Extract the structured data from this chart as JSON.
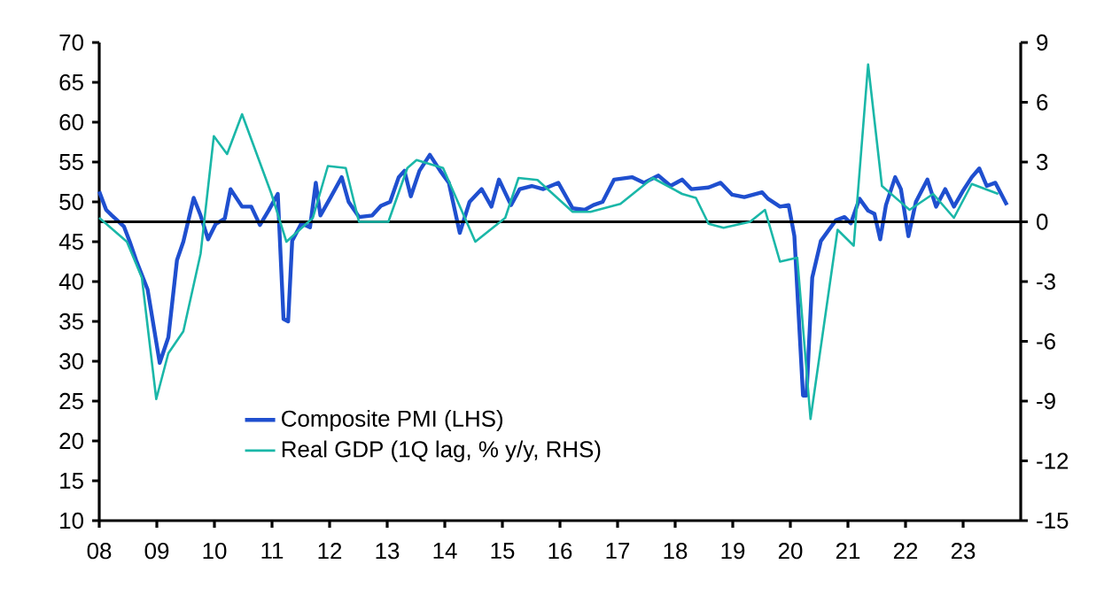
{
  "chart_data": {
    "type": "line",
    "x": [
      2008.0,
      2008.12,
      2008.22,
      2008.43,
      2008.53,
      2008.64,
      2008.84,
      2009.05,
      2009.2,
      2009.35,
      2009.46,
      2009.64,
      2009.76,
      2009.89,
      2010.02,
      2010.18,
      2010.28,
      2010.48,
      2010.64,
      2010.79,
      2010.94,
      2011.1,
      2011.2,
      2011.28,
      2011.35,
      2011.51,
      2011.66,
      2011.76,
      2011.84,
      2012.02,
      2012.21,
      2012.33,
      2012.51,
      2012.74,
      2012.89,
      2013.05,
      2013.2,
      2013.3,
      2013.41,
      2013.56,
      2013.74,
      2013.92,
      2014.07,
      2014.26,
      2014.43,
      2014.64,
      2014.81,
      2014.94,
      2015.15,
      2015.3,
      2015.51,
      2015.71,
      2015.97,
      2016.22,
      2016.43,
      2016.58,
      2016.74,
      2016.94,
      2017.25,
      2017.46,
      2017.71,
      2017.92,
      2018.12,
      2018.28,
      2018.58,
      2018.79,
      2018.99,
      2019.2,
      2019.51,
      2019.61,
      2019.82,
      2019.97,
      2020.07,
      2020.22,
      2020.28,
      2020.38,
      2020.53,
      2020.79,
      2020.94,
      2021.05,
      2021.2,
      2021.35,
      2021.46,
      2021.56,
      2021.66,
      2021.82,
      2021.92,
      2022.05,
      2022.18,
      2022.38,
      2022.53,
      2022.69,
      2022.84,
      2022.99,
      2023.15,
      2023.28,
      2023.41,
      2023.56,
      2023.76
    ],
    "series": [
      {
        "name": "Composite PMI (LHS)",
        "color": "#1f4fcf",
        "values": [
          51.3,
          49.0,
          48.3,
          46.9,
          45.0,
          42.7,
          39.0,
          29.8,
          33.0,
          42.7,
          45.0,
          50.5,
          48.3,
          45.3,
          47.2,
          47.9,
          51.6,
          49.4,
          49.4,
          47.1,
          48.9,
          51.0,
          35.3,
          35.0,
          45.1,
          47.3,
          46.8,
          52.4,
          48.3,
          50.6,
          53.1,
          50.0,
          48.1,
          48.3,
          49.5,
          50.0,
          53.1,
          53.9,
          50.7,
          53.9,
          55.9,
          53.9,
          52.4,
          46.1,
          50.0,
          51.6,
          49.4,
          52.8,
          49.6,
          51.6,
          52.0,
          51.6,
          52.4,
          49.2,
          49.0,
          49.6,
          50.0,
          52.8,
          53.1,
          52.4,
          53.3,
          52.0,
          52.8,
          51.6,
          51.8,
          52.4,
          50.9,
          50.6,
          51.2,
          50.4,
          49.4,
          49.6,
          45.7,
          25.7,
          25.7,
          40.5,
          45.1,
          47.7,
          48.1,
          47.3,
          50.4,
          48.9,
          48.5,
          45.3,
          49.6,
          53.1,
          51.6,
          45.7,
          50.0,
          52.8,
          49.4,
          51.6,
          49.4,
          51.3,
          53.1,
          54.2,
          52.0,
          52.4,
          49.6
        ]
      },
      {
        "name": "Real GDP (1Q lag, % y/y, RHS)",
        "color": "#1ab7a8",
        "axis": "y2",
        "x": [
          2008.0,
          2008.48,
          2008.74,
          2008.99,
          2009.2,
          2009.46,
          2009.76,
          2009.99,
          2010.22,
          2010.48,
          2010.99,
          2011.25,
          2011.71,
          2011.97,
          2012.28,
          2012.51,
          2013.02,
          2013.35,
          2013.51,
          2013.97,
          2014.53,
          2015.05,
          2015.28,
          2015.61,
          2016.22,
          2016.53,
          2017.05,
          2017.61,
          2018.12,
          2018.36,
          2018.58,
          2018.84,
          2019.3,
          2019.56,
          2019.82,
          2020.12,
          2020.35,
          2020.82,
          2021.1,
          2021.35,
          2021.59,
          2022.07,
          2022.48,
          2022.84,
          2023.15,
          2023.61
        ],
        "values": [
          0.2,
          -1.0,
          -2.8,
          -8.9,
          -6.6,
          -5.5,
          -1.6,
          4.3,
          3.4,
          5.4,
          1.4,
          -1.0,
          0.2,
          2.8,
          2.7,
          0.0,
          0.0,
          2.7,
          3.1,
          2.7,
          -1.0,
          0.2,
          2.2,
          2.1,
          0.5,
          0.5,
          0.9,
          2.2,
          1.4,
          1.2,
          -0.1,
          -0.3,
          0.0,
          0.6,
          -2.0,
          -1.8,
          -9.9,
          -0.4,
          -1.2,
          7.9,
          1.8,
          0.6,
          1.4,
          0.2,
          1.9,
          1.4
        ]
      }
    ],
    "xlim": [
      2008,
      2024
    ],
    "xticks": [
      {
        "value": 2008,
        "label": "08"
      },
      {
        "value": 2009,
        "label": "09"
      },
      {
        "value": 2010,
        "label": "10"
      },
      {
        "value": 2011,
        "label": "11"
      },
      {
        "value": 2012,
        "label": "12"
      },
      {
        "value": 2013,
        "label": "13"
      },
      {
        "value": 2014,
        "label": "14"
      },
      {
        "value": 2015,
        "label": "15"
      },
      {
        "value": 2016,
        "label": "16"
      },
      {
        "value": 2017,
        "label": "17"
      },
      {
        "value": 2018,
        "label": "18"
      },
      {
        "value": 2019,
        "label": "19"
      },
      {
        "value": 2020,
        "label": "20"
      },
      {
        "value": 2021,
        "label": "21"
      },
      {
        "value": 2022,
        "label": "22"
      },
      {
        "value": 2023,
        "label": "23"
      }
    ],
    "ylim": [
      10,
      70
    ],
    "yticks": [
      10,
      15,
      20,
      25,
      30,
      35,
      40,
      45,
      50,
      55,
      60,
      65,
      70
    ],
    "y2lim": [
      -15,
      9
    ],
    "y2ticks": [
      -15,
      -12,
      -9,
      -6,
      -3,
      0,
      3,
      6,
      9
    ],
    "ref_lines": [
      {
        "axis": "y2",
        "value": 0,
        "color": "#000000"
      }
    ],
    "legend": "bottom left",
    "grid": false
  }
}
